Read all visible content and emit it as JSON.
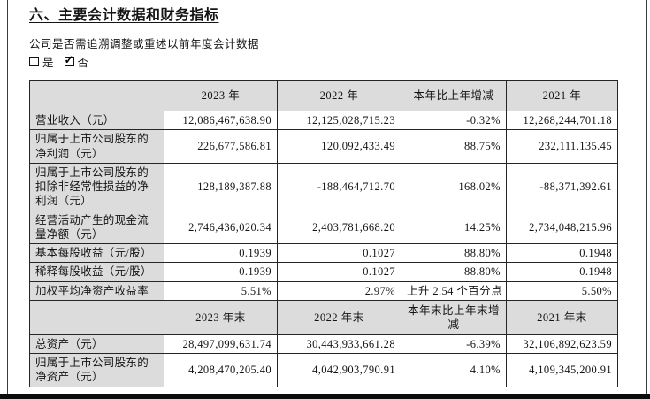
{
  "page": {
    "title": "六、主要会计数据和财务指标",
    "question": "公司是否需追溯调整或重述以前年度会计数据",
    "checkboxes": [
      {
        "label": "是",
        "checked": false
      },
      {
        "label": "否",
        "checked": true
      }
    ]
  },
  "table": {
    "columns_annual": [
      "",
      "2023 年",
      "2022 年",
      "本年比上年增减",
      "2021 年"
    ],
    "rows_annual": [
      [
        "营业收入（元）",
        "12,086,467,638.90",
        "12,125,028,715.23",
        "-0.32%",
        "12,268,244,701.18"
      ],
      [
        "归属于上市公司股东的净利润（元）",
        "226,677,586.81",
        "120,092,433.49",
        "88.75%",
        "232,111,135.45"
      ],
      [
        "归属于上市公司股东的扣除非经常性损益的净利润（元）",
        "128,189,387.88",
        "-188,464,712.70",
        "168.02%",
        "-88,371,392.61"
      ],
      [
        "经营活动产生的现金流量净额（元）",
        "2,746,436,020.34",
        "2,403,781,668.20",
        "14.25%",
        "2,734,048,215.96"
      ],
      [
        "基本每股收益（元/股）",
        "0.1939",
        "0.1027",
        "88.80%",
        "0.1948"
      ],
      [
        "稀释每股收益（元/股）",
        "0.1939",
        "0.1027",
        "88.80%",
        "0.1948"
      ],
      [
        "加权平均净资产收益率",
        "5.51%",
        "2.97%",
        "上升 2.54 个百分点",
        "5.50%"
      ]
    ],
    "columns_yearend": [
      "",
      "2023 年末",
      "2022 年末",
      "本年末比上年末增减",
      "2021 年末"
    ],
    "rows_yearend": [
      [
        "总资产（元）",
        "28,497,099,631.74",
        "30,443,933,661.28",
        "-6.39%",
        "32,106,892,623.59"
      ],
      [
        "归属于上市公司股东的净资产（元）",
        "4,208,470,205.40",
        "4,042,903,790.91",
        "4.10%",
        "4,109,345,200.91"
      ]
    ],
    "colors": {
      "header_bg": "#dcdcdc",
      "border": "#262626"
    }
  }
}
